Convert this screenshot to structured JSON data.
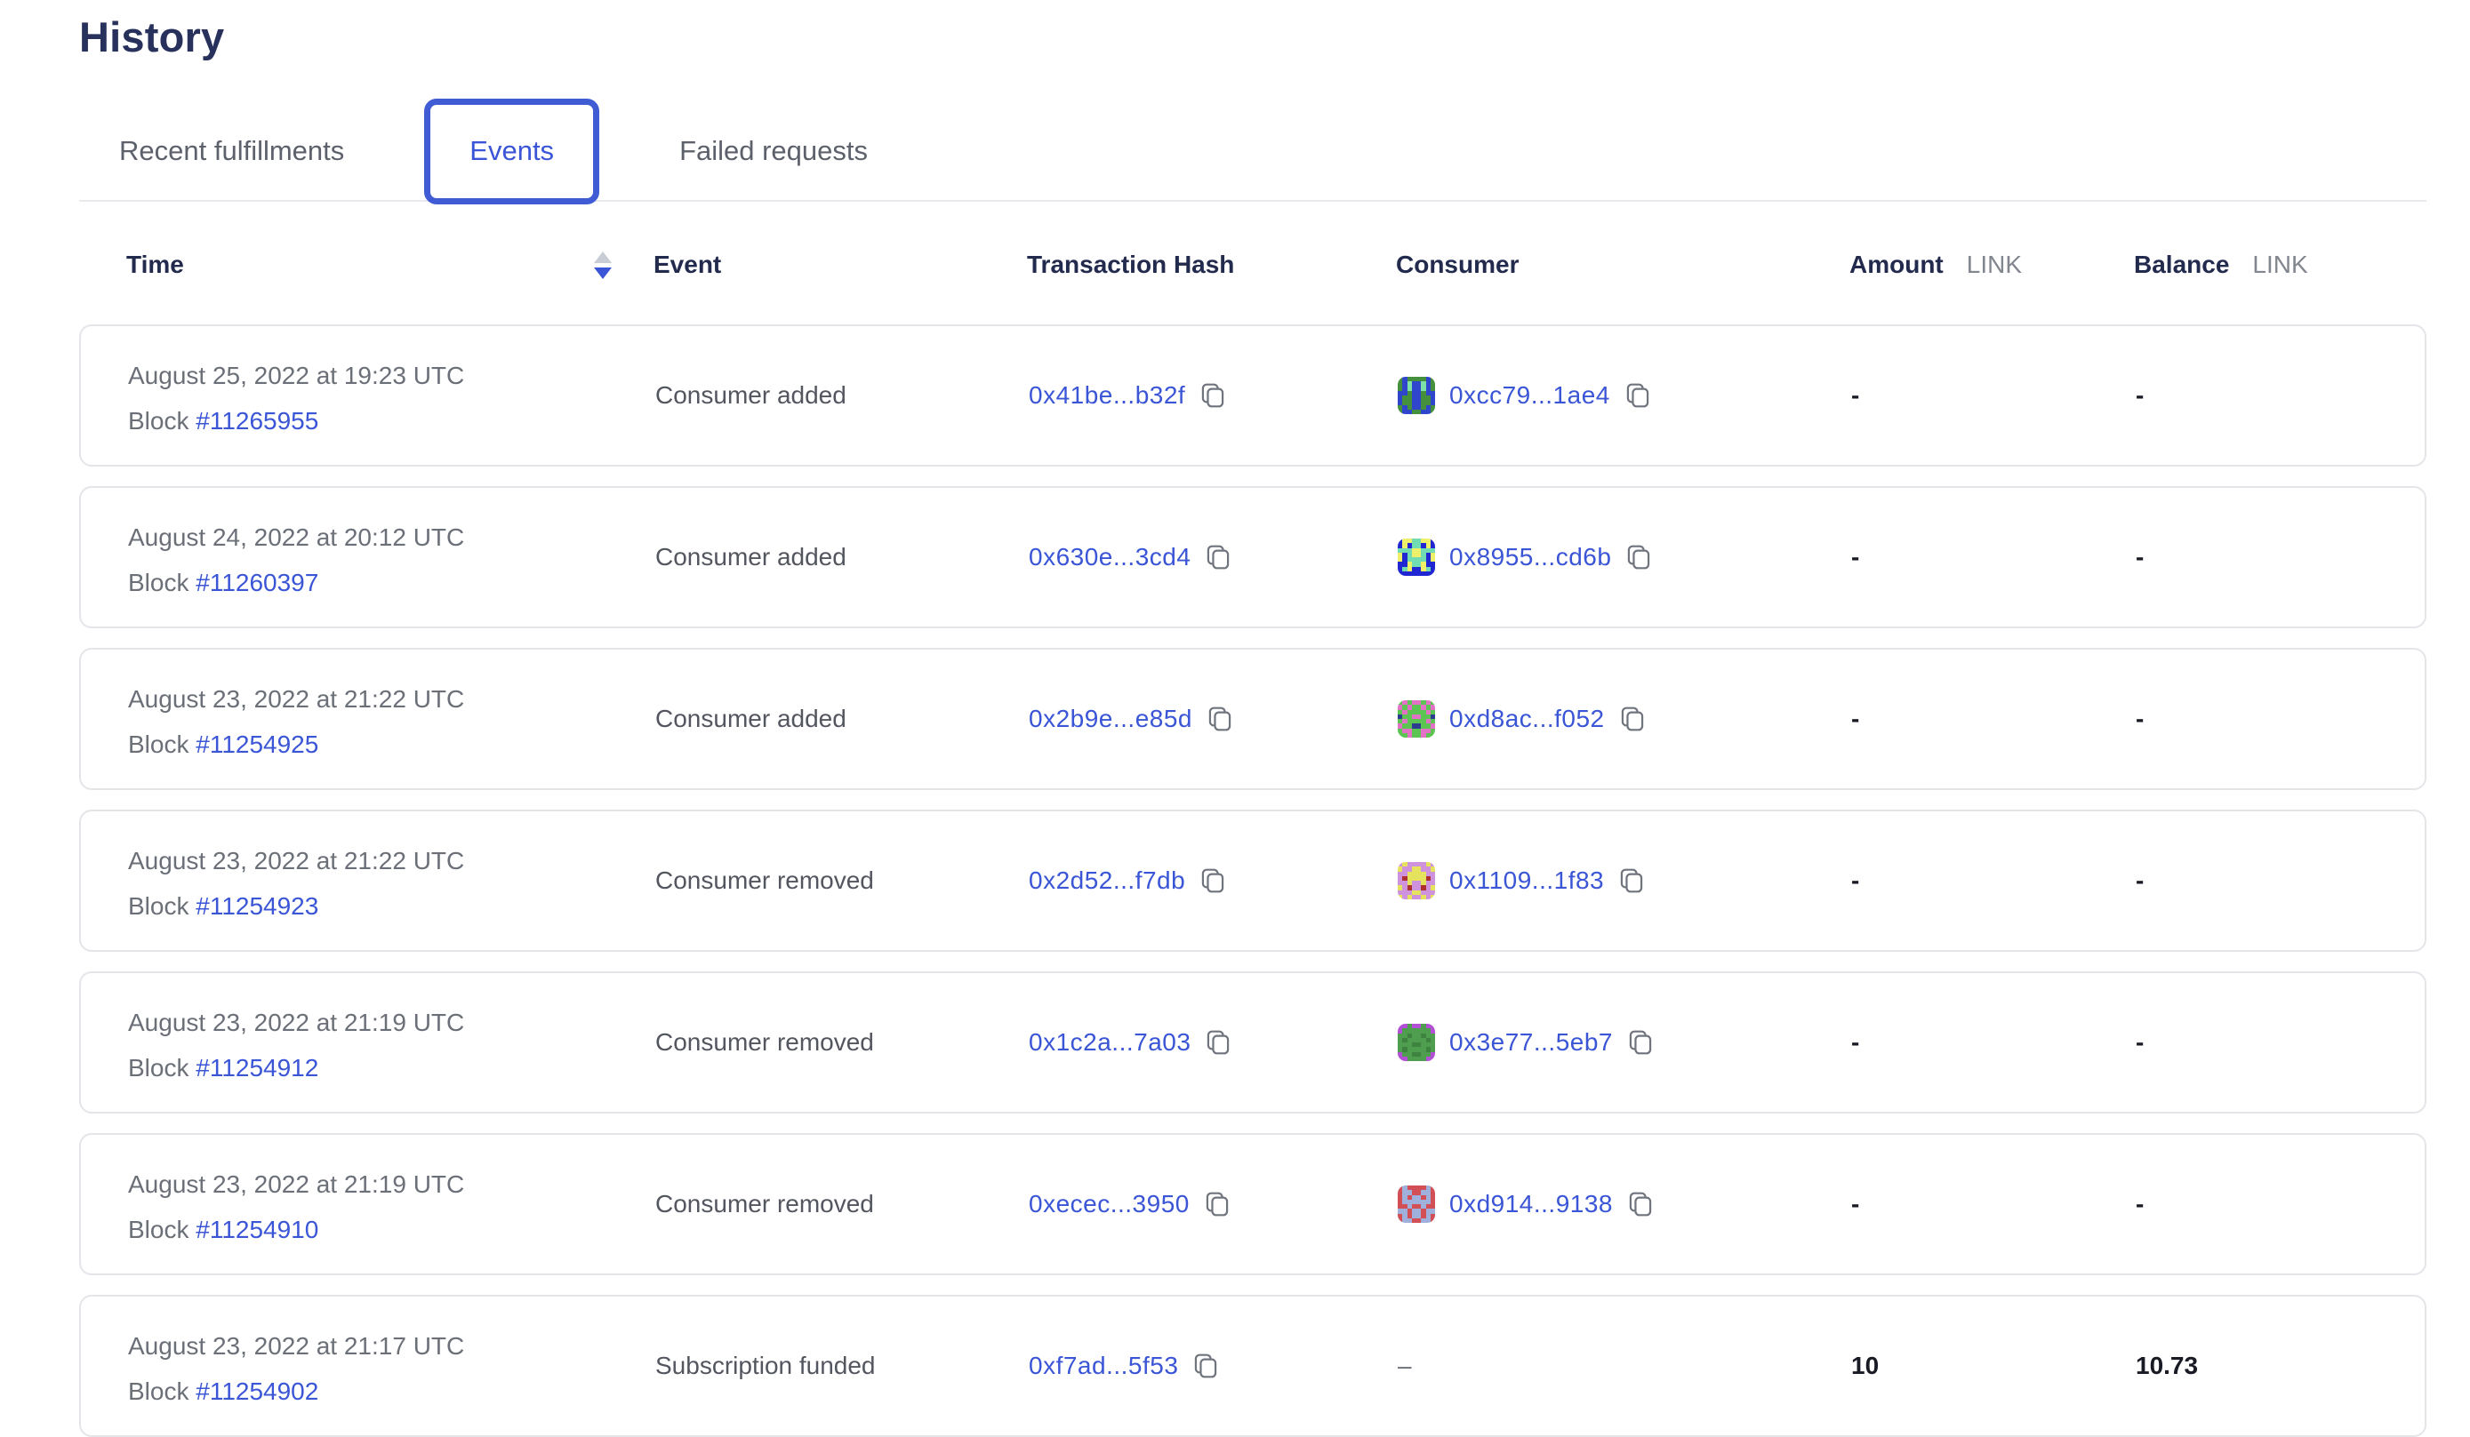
{
  "page": {
    "title": "History"
  },
  "tabs": [
    {
      "label": "Recent fulfillments",
      "active": false
    },
    {
      "label": "Events",
      "active": true
    },
    {
      "label": "Failed requests",
      "active": false
    }
  ],
  "colors": {
    "accent_blue": "#3a55d6",
    "tab_border_blue": "#3f5cd4",
    "heading_navy": "#28305c",
    "header_navy": "#222a4d",
    "text_gray": "#6b7078",
    "event_gray": "#53565f",
    "value_dark": "#181b24",
    "card_border": "#e3e5e9",
    "sort_inactive": "#c8ccd4"
  },
  "table": {
    "headers": {
      "time": "Time",
      "event": "Event",
      "tx": "Transaction Hash",
      "consumer": "Consumer",
      "amount": "Amount",
      "balance": "Balance",
      "unit": "LINK"
    },
    "sort": {
      "column": "time",
      "direction": "descending"
    },
    "rows": [
      {
        "date": "August 25, 2022 at 19:23 UTC",
        "block_label": "Block",
        "block": "#11265955",
        "event": "Consumer added",
        "tx": "0x41be...b32f",
        "consumer": "0xcc79...1ae4",
        "amount": "-",
        "balance": "-",
        "identicon": {
          "palette": [
            "#44903c",
            "#2f45cc",
            "#7ee2a8"
          ],
          "pattern": [
            "01000010",
            "01211210",
            "01211210",
            "11011011",
            "10011001",
            "10011001",
            "01011010",
            "01100110"
          ]
        }
      },
      {
        "date": "August 24, 2022 at 20:12 UTC",
        "block_label": "Block",
        "block": "#11260397",
        "event": "Consumer added",
        "tx": "0x630e...3cd4",
        "consumer": "0x8955...cd6b",
        "amount": "-",
        "balance": "-",
        "identicon": {
          "palette": [
            "#2026d2",
            "#eef06a",
            "#71dcb1"
          ],
          "pattern": [
            "01122110",
            "01022010",
            "22211222",
            "10211201",
            "10222201",
            "00122100",
            "02100120",
            "00000000"
          ]
        }
      },
      {
        "date": "August 23, 2022 at 21:22 UTC",
        "block_label": "Block",
        "block": "#11254925",
        "event": "Consumer added",
        "tx": "0x2b9e...e85d",
        "consumer": "0xd8ac...f052",
        "amount": "-",
        "balance": "-",
        "identicon": {
          "palette": [
            "#5cc453",
            "#e272c5",
            "#2c3d8f"
          ],
          "pattern": [
            "01011010",
            "10100101",
            "01000010",
            "20011002",
            "01000010",
            "10022001",
            "01100110",
            "00100100"
          ]
        }
      },
      {
        "date": "August 23, 2022 at 21:22 UTC",
        "block_label": "Block",
        "block": "#11254923",
        "event": "Consumer removed",
        "tx": "0x2d52...f7db",
        "consumer": "0x1109...1f83",
        "amount": "-",
        "balance": "-",
        "identicon": {
          "palette": [
            "#cf92dd",
            "#e5e35e",
            "#ad2f2f"
          ],
          "pattern": [
            "01000010",
            "10011001",
            "00111100",
            "02111120",
            "00100100",
            "10200201",
            "00011000",
            "10100101"
          ]
        }
      },
      {
        "date": "August 23, 2022 at 21:19 UTC",
        "block_label": "Block",
        "block": "#11254912",
        "event": "Consumer removed",
        "tx": "0x1c2a...7a03",
        "consumer": "0x3e77...5eb7",
        "amount": "-",
        "balance": "-",
        "identicon": {
          "palette": [
            "#4f9e4f",
            "#b24fd6",
            "#3f8340"
          ],
          "pattern": [
            "11011011",
            "10000001",
            "00200200",
            "02000020",
            "00022000",
            "02000020",
            "10022001",
            "11000011"
          ]
        }
      },
      {
        "date": "August 23, 2022 at 21:19 UTC",
        "block_label": "Block",
        "block": "#11254910",
        "event": "Consumer removed",
        "tx": "0xecec...3950",
        "consumer": "0xd914...9138",
        "amount": "-",
        "balance": "-",
        "identicon": {
          "palette": [
            "#d24f56",
            "#9fb0dc",
            "#b03a3f"
          ],
          "pattern": [
            "01000010",
            "01100110",
            "01011010",
            "01111110",
            "00100100",
            "11011011",
            "01011010",
            "01100110"
          ]
        }
      },
      {
        "date": "August 23, 2022 at 21:17 UTC",
        "block_label": "Block",
        "block": "#11254902",
        "event": "Subscription funded",
        "tx": "0xf7ad...5f53",
        "consumer": "–",
        "amount": "10",
        "balance": "10.73",
        "identicon": null
      }
    ]
  }
}
